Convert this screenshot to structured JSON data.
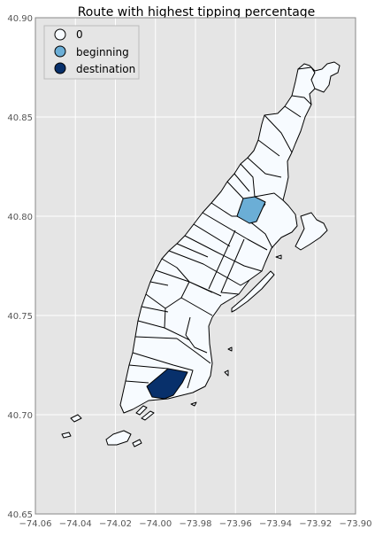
{
  "chart_data": {
    "type": "choropleth-map",
    "title": "Route with highest tipping percentage",
    "x_axis": {
      "range": [
        -74.06,
        -73.9
      ],
      "ticks": [
        "−74.06",
        "−74.04",
        "−74.02",
        "−74.00",
        "−73.98",
        "−73.96",
        "−73.94",
        "−73.92",
        "−73.90"
      ]
    },
    "y_axis": {
      "range": [
        40.65,
        40.9
      ],
      "ticks": [
        "40.65",
        "40.70",
        "40.75",
        "40.80",
        "40.85",
        "40.90"
      ]
    },
    "grid": true,
    "legend": {
      "placement": "top-left",
      "entries": [
        {
          "label": "0",
          "color": "#f7fbff"
        },
        {
          "label": "beginning",
          "color": "#6baed6"
        },
        {
          "label": "destination",
          "color": "#08306b"
        }
      ]
    },
    "highlighted_zones": [
      {
        "role": "beginning",
        "approx_lon": -73.953,
        "approx_lat": 40.803
      },
      {
        "role": "destination",
        "approx_lon": -73.994,
        "approx_lat": 40.716
      }
    ],
    "colors": {
      "background": "#e5e5e5",
      "grid": "#ffffff",
      "zone_fill": "#f7fbff",
      "zone_edge": "#000000"
    }
  }
}
